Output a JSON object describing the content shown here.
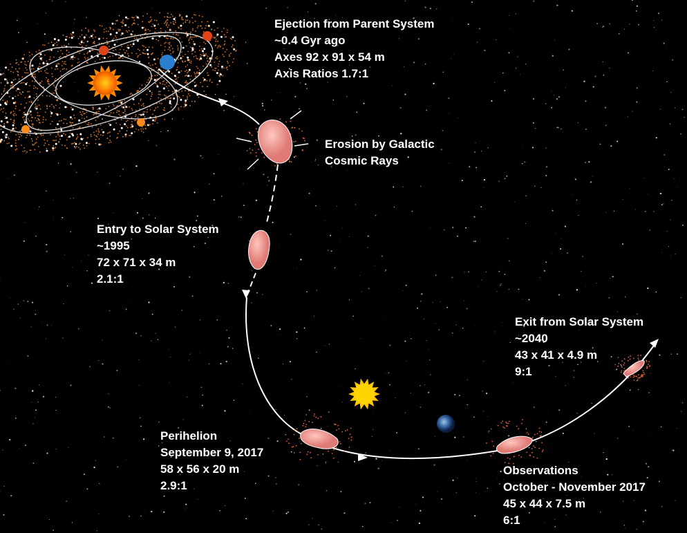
{
  "stages": [
    {
      "lines": [
        "Ejection from Parent System",
        "~0.4 Gyr ago",
        "Axes 92 x 91 x 54 m",
        "Axis Ratios 1.7:1"
      ]
    },
    {
      "lines": [
        "Erosion by Galactic",
        "Cosmic Rays"
      ]
    },
    {
      "lines": [
        "Entry to Solar System",
        "~1995",
        "72 x 71 x 34 m",
        "2.1:1"
      ]
    },
    {
      "lines": [
        "Perihelion",
        "September 9, 2017",
        "58 x 56 x 20 m",
        "2.9:1"
      ]
    },
    {
      "lines": [
        "Exit from Solar System",
        "~2040",
        "43 x 41 x 4.9 m",
        "9:1"
      ]
    },
    {
      "lines": [
        "Observations",
        "October - November 2017",
        "45 x 44 x 7.5 m",
        "6:1"
      ]
    }
  ]
}
